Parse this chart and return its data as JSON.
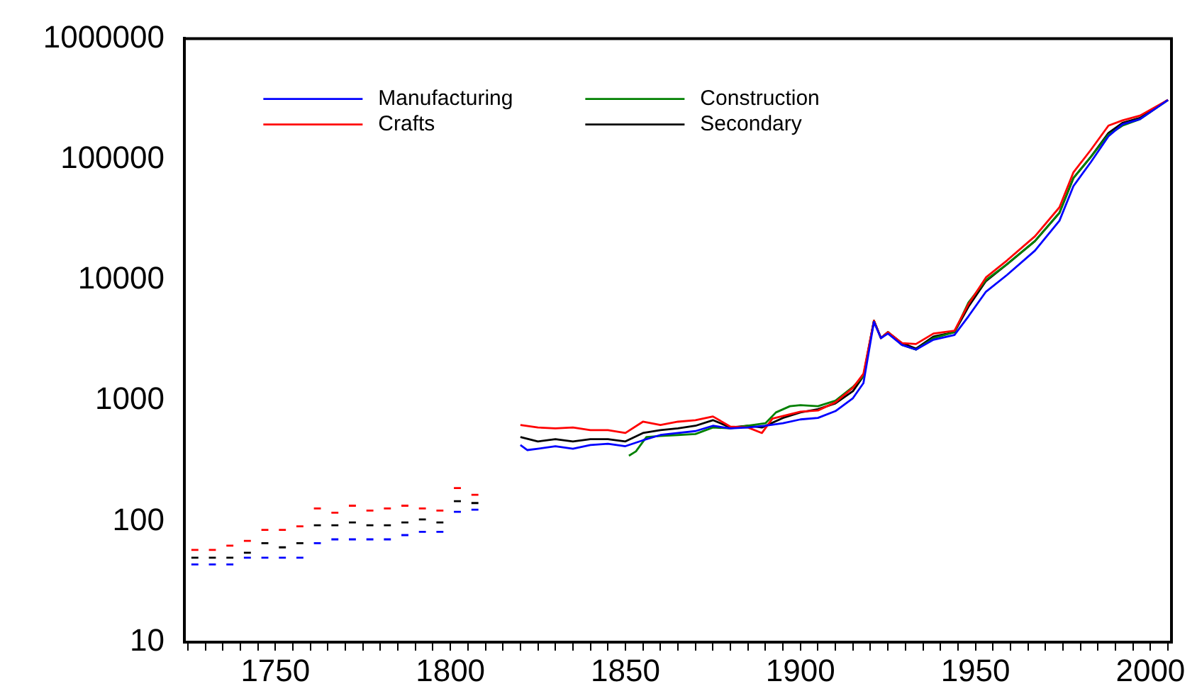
{
  "chart_data": {
    "type": "line",
    "log": "y",
    "legend": "top left",
    "grid": false,
    "line_style": "solid",
    "marker": "none",
    "xlim": [
      1724,
      2006
    ],
    "ylim": [
      10,
      1000000
    ],
    "xticks": [
      {
        "value": 1725,
        "label": null
      },
      {
        "value": 1730,
        "label": null
      },
      {
        "value": 1735,
        "label": null
      },
      {
        "value": 1740,
        "label": null
      },
      {
        "value": 1745,
        "label": null
      },
      1750,
      {
        "value": 1755,
        "label": null
      },
      {
        "value": 1760,
        "label": null
      },
      {
        "value": 1765,
        "label": null
      },
      {
        "value": 1770,
        "label": null
      },
      {
        "value": 1775,
        "label": null
      },
      {
        "value": 1780,
        "label": null
      },
      {
        "value": 1785,
        "label": null
      },
      {
        "value": 1790,
        "label": null
      },
      {
        "value": 1795,
        "label": null
      },
      1800,
      {
        "value": 1805,
        "label": null
      },
      {
        "value": 1810,
        "label": null
      },
      {
        "value": 1815,
        "label": null
      },
      {
        "value": 1820,
        "label": null
      },
      {
        "value": 1825,
        "label": null
      },
      {
        "value": 1830,
        "label": null
      },
      {
        "value": 1835,
        "label": null
      },
      {
        "value": 1840,
        "label": null
      },
      {
        "value": 1845,
        "label": null
      },
      1850,
      {
        "value": 1855,
        "label": null
      },
      {
        "value": 1860,
        "label": null
      },
      {
        "value": 1865,
        "label": null
      },
      {
        "value": 1870,
        "label": null
      },
      {
        "value": 1875,
        "label": null
      },
      {
        "value": 1880,
        "label": null
      },
      {
        "value": 1885,
        "label": null
      },
      {
        "value": 1890,
        "label": null
      },
      {
        "value": 1895,
        "label": null
      },
      1900,
      {
        "value": 1905,
        "label": null
      },
      {
        "value": 1910,
        "label": null
      },
      {
        "value": 1915,
        "label": null
      },
      {
        "value": 1920,
        "label": null
      },
      {
        "value": 1925,
        "label": null
      },
      {
        "value": 1930,
        "label": null
      },
      {
        "value": 1935,
        "label": null
      },
      {
        "value": 1940,
        "label": null
      },
      {
        "value": 1945,
        "label": null
      },
      1950,
      {
        "value": 1955,
        "label": null
      },
      {
        "value": 1960,
        "label": null
      },
      {
        "value": 1965,
        "label": null
      },
      {
        "value": 1970,
        "label": null
      },
      {
        "value": 1975,
        "label": null
      },
      {
        "value": 1980,
        "label": null
      },
      {
        "value": 1985,
        "label": null
      },
      {
        "value": 1990,
        "label": null
      },
      {
        "value": 1995,
        "label": null
      },
      2000,
      {
        "value": 2005,
        "label": null
      }
    ],
    "yticks": [
      10,
      100,
      1000,
      10000,
      100000,
      1000000
    ],
    "series": [
      {
        "name": "Manufacturing",
        "color": "#0000ff",
        "x": [
          1726,
          1728,
          1729,
          1731,
          1733,
          1734,
          1736,
          1738,
          1739,
          1741,
          1743,
          1744,
          1746,
          1748,
          1749,
          1751,
          1753,
          1754,
          1756,
          1758,
          1759,
          1761,
          1763,
          1764,
          1766,
          1768,
          1769,
          1771,
          1773,
          1774,
          1776,
          1778,
          1779,
          1781,
          1783,
          1784,
          1786,
          1788,
          1789,
          1791,
          1793,
          1794,
          1796,
          1798,
          1799,
          1801,
          1803,
          1804,
          1806,
          1808,
          1814,
          1820,
          1822,
          1825,
          1830,
          1835,
          1840,
          1845,
          1850,
          1855,
          1860,
          1865,
          1870,
          1875,
          1880,
          1885,
          1890,
          1895,
          1900,
          1905,
          1910,
          1915,
          1918,
          1921,
          1923,
          1925,
          1929,
          1933,
          1938,
          1944,
          1948,
          1953,
          1959,
          1967,
          1974,
          1978,
          1983,
          1988,
          1992,
          1997,
          2005
        ],
        "values": [
          44,
          44,
          null,
          44,
          44,
          null,
          44,
          44,
          null,
          50,
          50,
          null,
          50,
          50,
          null,
          50,
          50,
          null,
          50,
          50,
          null,
          66,
          66,
          null,
          71,
          71,
          null,
          71,
          71,
          null,
          71,
          71,
          null,
          71,
          71,
          null,
          77,
          77,
          null,
          82,
          82,
          null,
          82,
          82,
          null,
          120,
          120,
          null,
          125,
          125,
          null,
          430,
          390,
          400,
          420,
          400,
          430,
          440,
          420,
          470,
          520,
          540,
          560,
          620,
          590,
          600,
          620,
          650,
          700,
          720,
          820,
          1050,
          1400,
          4500,
          3300,
          3600,
          2900,
          2650,
          3200,
          3500,
          5000,
          8000,
          11000,
          17500,
          31000,
          60000,
          95000,
          155000,
          195000,
          215000,
          310000
        ]
      },
      {
        "name": "Crafts",
        "color": "#ff0000",
        "x": [
          1726,
          1728,
          1729,
          1731,
          1733,
          1734,
          1736,
          1738,
          1739,
          1741,
          1743,
          1744,
          1746,
          1748,
          1749,
          1751,
          1753,
          1754,
          1756,
          1758,
          1759,
          1761,
          1763,
          1764,
          1766,
          1768,
          1769,
          1771,
          1773,
          1774,
          1776,
          1778,
          1779,
          1781,
          1783,
          1784,
          1786,
          1788,
          1789,
          1791,
          1793,
          1794,
          1796,
          1798,
          1799,
          1801,
          1803,
          1804,
          1806,
          1808,
          1814,
          1820,
          1825,
          1830,
          1835,
          1840,
          1845,
          1850,
          1855,
          1860,
          1865,
          1870,
          1875,
          1880,
          1885,
          1889,
          1892,
          1900,
          1905,
          1910,
          1915,
          1918,
          1921,
          1923,
          1925,
          1929,
          1933,
          1938,
          1944,
          1948,
          1953,
          1959,
          1967,
          1974,
          1978,
          1983,
          1988,
          1992,
          1997,
          2005
        ],
        "values": [
          58,
          58,
          null,
          58,
          58,
          null,
          63,
          63,
          null,
          69,
          69,
          null,
          85,
          85,
          null,
          85,
          85,
          null,
          91,
          91,
          null,
          128,
          128,
          null,
          118,
          118,
          null,
          135,
          135,
          null,
          123,
          123,
          null,
          128,
          128,
          null,
          135,
          135,
          null,
          128,
          128,
          null,
          123,
          123,
          null,
          189,
          189,
          null,
          166,
          166,
          null,
          630,
          600,
          590,
          600,
          570,
          570,
          540,
          670,
          630,
          670,
          690,
          740,
          610,
          600,
          540,
          710,
          810,
          830,
          970,
          1280,
          1670,
          4600,
          3300,
          3700,
          3000,
          2950,
          3600,
          3800,
          6300,
          10500,
          14500,
          23000,
          40000,
          78000,
          120000,
          190000,
          210000,
          230000,
          310000
        ]
      },
      {
        "name": "Construction",
        "color": "#008000",
        "x": [
          1851,
          1853,
          1856,
          1860,
          1865,
          1870,
          1875,
          1880,
          1885,
          1890,
          1893,
          1897,
          1900,
          1905,
          1910,
          1915,
          1918,
          1921,
          1923,
          1925,
          1929,
          1933,
          1938,
          1944,
          1948,
          1953,
          1959,
          1967,
          1974,
          1978,
          1983,
          1988,
          1992,
          1997,
          2005
        ],
        "values": [
          350,
          380,
          500,
          510,
          520,
          530,
          600,
          590,
          620,
          650,
          800,
          900,
          920,
          900,
          1000,
          1300,
          1600,
          4600,
          3300,
          3700,
          2900,
          2650,
          3300,
          3700,
          6500,
          10000,
          13500,
          21000,
          36000,
          70000,
          105000,
          160000,
          190000,
          215000,
          310000
        ]
      },
      {
        "name": "Secondary",
        "color": "#000000",
        "x": [
          1726,
          1728,
          1729,
          1731,
          1733,
          1734,
          1736,
          1738,
          1739,
          1741,
          1743,
          1744,
          1746,
          1748,
          1749,
          1751,
          1753,
          1754,
          1756,
          1758,
          1759,
          1761,
          1763,
          1764,
          1766,
          1768,
          1769,
          1771,
          1773,
          1774,
          1776,
          1778,
          1779,
          1781,
          1783,
          1784,
          1786,
          1788,
          1789,
          1791,
          1793,
          1794,
          1796,
          1798,
          1799,
          1801,
          1803,
          1804,
          1806,
          1808,
          1814,
          1820,
          1825,
          1830,
          1835,
          1840,
          1845,
          1850,
          1855,
          1860,
          1865,
          1870,
          1875,
          1880,
          1885,
          1889,
          1895,
          1900,
          1905,
          1910,
          1915,
          1918,
          1921,
          1923,
          1925,
          1929,
          1933,
          1938,
          1944,
          1948,
          1953,
          1959,
          1967,
          1974,
          1978,
          1983,
          1988,
          1992,
          1997,
          2005
        ],
        "values": [
          50,
          50,
          null,
          50,
          50,
          null,
          50,
          50,
          null,
          55,
          55,
          null,
          66,
          66,
          null,
          61,
          61,
          null,
          66,
          66,
          null,
          93,
          93,
          null,
          93,
          93,
          null,
          98,
          98,
          null,
          93,
          93,
          null,
          93,
          93,
          null,
          98,
          98,
          null,
          104,
          104,
          null,
          98,
          98,
          null,
          147,
          147,
          null,
          142,
          142,
          null,
          500,
          460,
          480,
          460,
          480,
          480,
          460,
          540,
          570,
          590,
          620,
          690,
          600,
          620,
          600,
          720,
          800,
          850,
          950,
          1200,
          1600,
          4600,
          3300,
          3700,
          3000,
          2700,
          3400,
          3700,
          6000,
          9800,
          13500,
          21000,
          36000,
          70000,
          105000,
          165000,
          200000,
          220000,
          310000
        ]
      }
    ]
  }
}
